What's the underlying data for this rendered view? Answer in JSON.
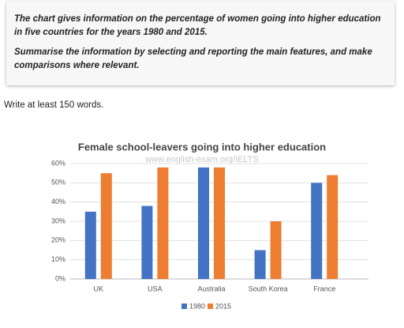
{
  "prompt": {
    "lines": [
      "The chart gives information on the percentage of women going into higher education in five countries for the years 1980 and 2015.",
      "Summarise the information by selecting and reporting the main features, and make comparisons where relevant."
    ]
  },
  "instruction": "Write at least 150 words.",
  "chart_data": {
    "type": "bar",
    "title": "Female school-leavers going into higher education",
    "watermark": "www.english-exam.org/IELTS",
    "categories": [
      "UK",
      "USA",
      "Australia",
      "South Korea",
      "France"
    ],
    "series": [
      {
        "name": "1980",
        "color": "#4472c4",
        "values": [
          35,
          38,
          58,
          15,
          50
        ]
      },
      {
        "name": "2015",
        "color": "#ed7d31",
        "values": [
          55,
          58,
          58,
          30,
          54
        ]
      }
    ],
    "ylim": [
      0,
      60
    ],
    "yticks": [
      {
        "value": 0,
        "label": "0%"
      },
      {
        "value": 10,
        "label": "10%"
      },
      {
        "value": 20,
        "label": "20%"
      },
      {
        "value": 30,
        "label": "30%"
      },
      {
        "value": 40,
        "label": "40%"
      },
      {
        "value": 50,
        "label": "50%"
      },
      {
        "value": 60,
        "label": "60%"
      }
    ],
    "grid": true,
    "legend": "bottom"
  }
}
